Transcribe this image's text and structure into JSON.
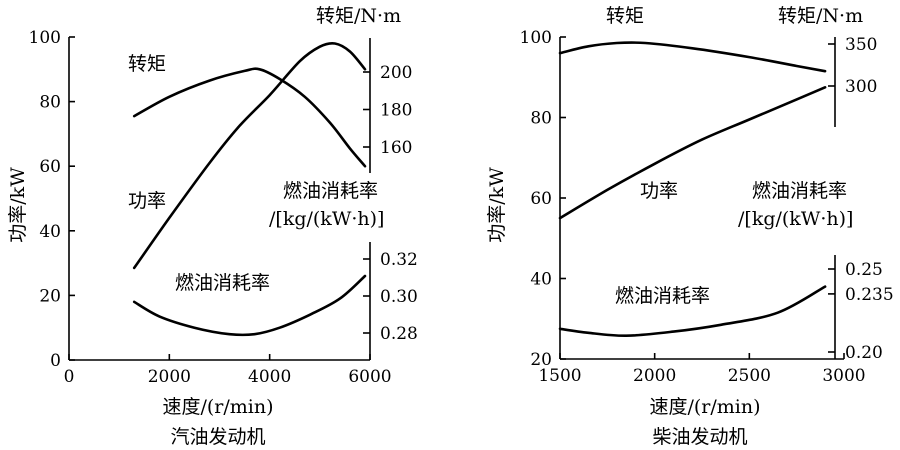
{
  "chart_data": [
    {
      "type": "line",
      "title": "汽油发动机",
      "xlabel": "速度/(r/min)",
      "xlim": [
        0,
        6000
      ],
      "xticks": [
        0,
        2000,
        4000,
        6000
      ],
      "ylabel": "功率/kW",
      "ylim": [
        0,
        100
      ],
      "yticks": [
        0,
        20,
        40,
        60,
        80,
        100
      ],
      "torque_axis": {
        "label": "转矩/N·m",
        "ticks": [
          160,
          180,
          200
        ]
      },
      "fuel_axis": {
        "label": [
          "燃油消耗率",
          "/[kg/(kW·h)]"
        ],
        "ticks": [
          0.28,
          0.3,
          0.32
        ]
      },
      "series": [
        {
          "name": "转矩",
          "axis": "power",
          "x": [
            1300,
            2000,
            2800,
            3500,
            3800,
            4200,
            4700,
            5200,
            5600,
            5900
          ],
          "y": [
            75.5,
            81.5,
            86.5,
            89.5,
            90,
            87,
            81.5,
            73.5,
            65.5,
            60
          ]
        },
        {
          "name": "功率",
          "axis": "power",
          "x": [
            1300,
            2000,
            2800,
            3400,
            4000,
            4600,
            5000,
            5300,
            5600,
            5900
          ],
          "y": [
            28.5,
            44,
            61,
            72.5,
            82,
            92.5,
            97,
            98,
            95.5,
            90
          ]
        },
        {
          "name": "燃油消耗率",
          "axis": "power",
          "x": [
            1300,
            1800,
            2500,
            3200,
            3700,
            4200,
            4800,
            5400,
            5900
          ],
          "y": [
            18,
            13.5,
            10,
            8,
            8,
            10,
            14,
            19,
            26
          ]
        }
      ]
    },
    {
      "type": "line",
      "title": "柴油发动机",
      "xlabel": "速度/(r/min)",
      "xlim": [
        1500,
        3000
      ],
      "xticks": [
        1500,
        2000,
        2500,
        3000
      ],
      "ylabel": "功率/kW",
      "ylim": [
        20,
        100
      ],
      "yticks": [
        20,
        40,
        60,
        80,
        100
      ],
      "torque_axis": {
        "label": "转矩/N·m",
        "ticks": [
          300,
          350
        ]
      },
      "fuel_axis": {
        "label": [
          "燃油消耗率",
          "/[kg/(kW·h)]"
        ],
        "ticks": [
          0.2,
          0.235,
          0.25
        ]
      },
      "series": [
        {
          "name": "转矩",
          "axis": "power",
          "x": [
            1500,
            1650,
            1800,
            1950,
            2200,
            2500,
            2750,
            2900
          ],
          "y": [
            96,
            97.7,
            98.5,
            98.5,
            97.2,
            95,
            92.8,
            91.5
          ]
        },
        {
          "name": "功率",
          "axis": "power",
          "x": [
            1500,
            1750,
            2000,
            2250,
            2500,
            2750,
            2900
          ],
          "y": [
            55,
            62,
            68.5,
            74.5,
            79.5,
            84.5,
            87.5
          ]
        },
        {
          "name": "燃油消耗率",
          "axis": "power",
          "x": [
            1500,
            1650,
            1850,
            2100,
            2350,
            2650,
            2900
          ],
          "y": [
            27.5,
            26.5,
            25.8,
            26.8,
            28.5,
            31.5,
            38
          ]
        }
      ]
    }
  ],
  "labels": {
    "gas_torque": "转矩",
    "gas_power": "功率",
    "gas_fuel": "燃油消耗率",
    "diesel_torque": "转矩",
    "diesel_power": "功率",
    "diesel_fuel": "燃油消耗率"
  }
}
